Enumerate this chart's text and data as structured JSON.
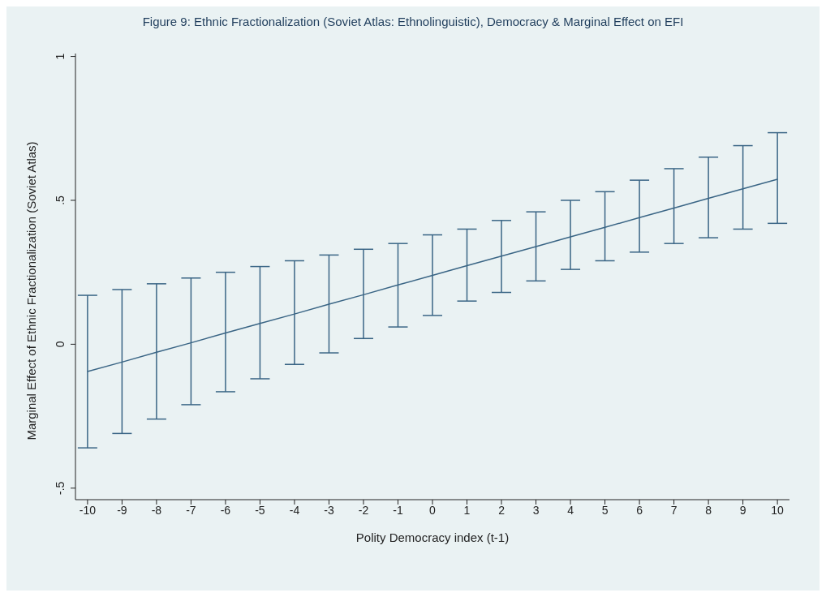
{
  "chart_data": {
    "type": "line",
    "title": "Figure 9: Ethnic Fractionalization (Soviet Atlas: Ethnolinguistic), Democracy & Marginal Effect on EFI",
    "xlabel": "Polity Democracy index (t-1)",
    "ylabel": "Marginal Effect of Ethnic Fractionalization (Soviet Atlas)",
    "x": [
      -10,
      -9,
      -8,
      -7,
      -6,
      -5,
      -4,
      -3,
      -2,
      -1,
      0,
      1,
      2,
      3,
      4,
      5,
      6,
      7,
      8,
      9,
      10
    ],
    "series": [
      {
        "color": "#3a6585",
        "values": [
          -0.095,
          -0.062,
          -0.028,
          0.005,
          0.039,
          0.072,
          0.105,
          0.139,
          0.172,
          0.206,
          0.239,
          0.273,
          0.306,
          0.339,
          0.373,
          0.406,
          0.44,
          0.473,
          0.507,
          0.54,
          0.573
        ],
        "errors": [
          [
            -0.36,
            0.17
          ],
          [
            -0.31,
            0.19
          ],
          [
            -0.26,
            0.21
          ],
          [
            -0.21,
            0.23
          ],
          [
            -0.165,
            0.25
          ],
          [
            -0.12,
            0.27
          ],
          [
            -0.07,
            0.29
          ],
          [
            -0.03,
            0.31
          ],
          [
            0.02,
            0.33
          ],
          [
            0.06,
            0.35
          ],
          [
            0.1,
            0.38
          ],
          [
            0.15,
            0.4
          ],
          [
            0.18,
            0.43
          ],
          [
            0.22,
            0.46
          ],
          [
            0.26,
            0.5
          ],
          [
            0.29,
            0.53
          ],
          [
            0.32,
            0.57
          ],
          [
            0.35,
            0.61
          ],
          [
            0.37,
            0.65
          ],
          [
            0.4,
            0.69
          ],
          [
            0.42,
            0.735
          ]
        ]
      }
    ],
    "xlim": [
      -10.35,
      10.35
    ],
    "xticks": [
      -10,
      -9,
      -8,
      -7,
      -6,
      -5,
      -4,
      -3,
      -2,
      -1,
      0,
      1,
      2,
      3,
      4,
      5,
      6,
      7,
      8,
      9,
      10
    ],
    "ylim": [
      -0.54,
      1.01
    ],
    "yticks": [
      {
        "value": -0.5,
        "label": "-.5"
      },
      0,
      {
        "value": 0.5,
        "label": ".5"
      },
      1
    ],
    "grid": false,
    "marker": "none",
    "line_style": "solid",
    "legend": false
  }
}
